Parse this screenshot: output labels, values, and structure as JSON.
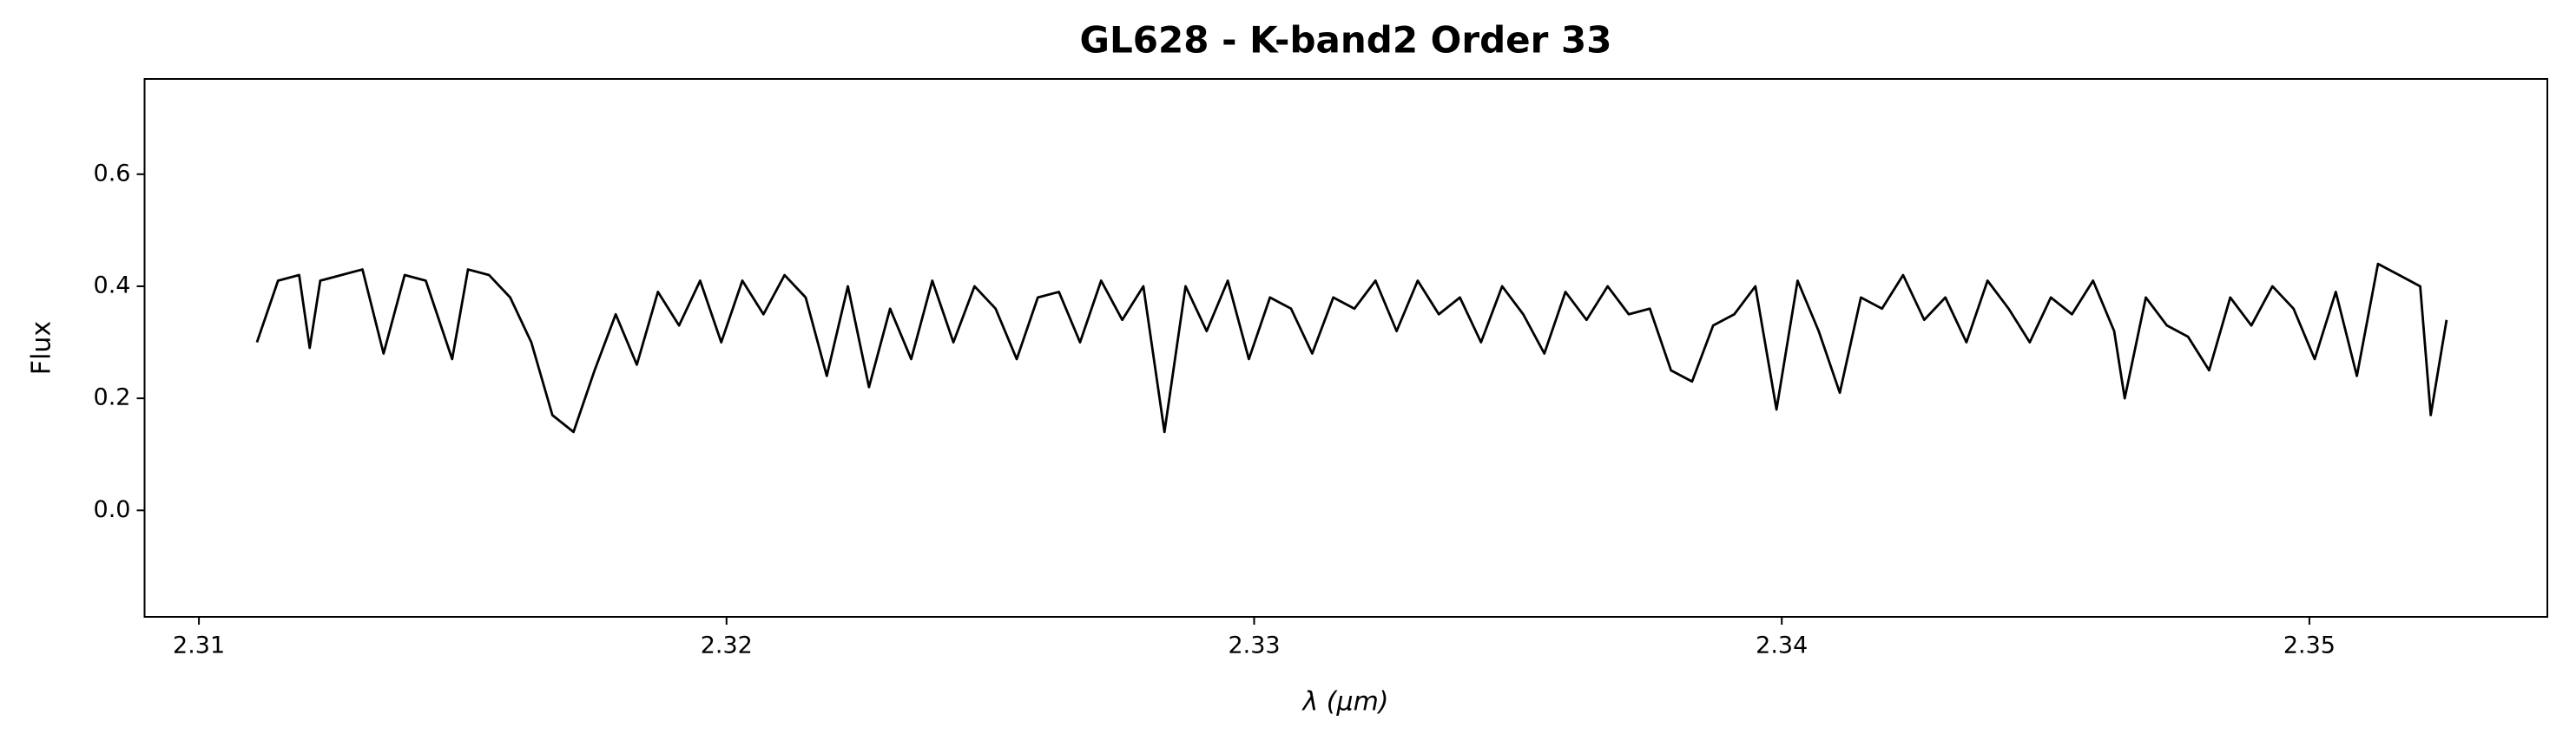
{
  "chart_data": {
    "type": "line",
    "title": "GL628 - K-band2 Order 33",
    "xlabel": "λ (μm)",
    "ylabel": "Flux",
    "color": "#000000",
    "grid": false,
    "xlim": [
      2.30897,
      2.35451
    ],
    "ylim": [
      -0.19,
      0.77
    ],
    "xticks": [
      2.31,
      2.32,
      2.33,
      2.34,
      2.35
    ],
    "yticks": [
      {
        "value": 0,
        "label": "0.0"
      },
      0.2,
      0.4,
      0.6
    ],
    "x": [
      2.3111,
      2.3115,
      2.3119,
      2.3121,
      2.3123,
      2.3127,
      2.3131,
      2.3135,
      2.3139,
      2.3143,
      2.3148,
      2.3151,
      2.3155,
      2.3159,
      2.3163,
      2.3167,
      2.3171,
      2.3175,
      2.3179,
      2.3183,
      2.3187,
      2.3191,
      2.3195,
      2.3199,
      2.3203,
      2.3207,
      2.3211,
      2.3215,
      2.3219,
      2.3223,
      2.3227,
      2.3231,
      2.3235,
      2.3239,
      2.3243,
      2.3247,
      2.3251,
      2.3255,
      2.3259,
      2.3263,
      2.3267,
      2.3271,
      2.3275,
      2.3279,
      2.3283,
      2.3287,
      2.3291,
      2.3295,
      2.3299,
      2.3303,
      2.3307,
      2.3311,
      2.3315,
      2.3319,
      2.3323,
      2.3327,
      2.3331,
      2.3335,
      2.3339,
      2.3343,
      2.3347,
      2.3351,
      2.3355,
      2.3359,
      2.3363,
      2.3367,
      2.3371,
      2.3375,
      2.3379,
      2.3383,
      2.3387,
      2.3391,
      2.3395,
      2.3399,
      2.3403,
      2.3407,
      2.3411,
      2.3415,
      2.3419,
      2.3423,
      2.3427,
      2.3431,
      2.3435,
      2.3439,
      2.3443,
      2.3447,
      2.3451,
      2.3455,
      2.3459,
      2.3463,
      2.3465,
      2.3469,
      2.3473,
      2.3477,
      2.3481,
      2.3485,
      2.3489,
      2.3493,
      2.3497,
      2.3501,
      2.3505,
      2.3509,
      2.3513,
      2.3517,
      2.3521,
      2.3523,
      2.3526
    ],
    "values": [
      0.3,
      0.41,
      0.42,
      0.29,
      0.41,
      0.42,
      0.43,
      0.28,
      0.42,
      0.41,
      0.27,
      0.43,
      0.42,
      0.38,
      0.3,
      0.17,
      0.14,
      0.25,
      0.35,
      0.26,
      0.39,
      0.33,
      0.41,
      0.3,
      0.41,
      0.35,
      0.42,
      0.38,
      0.24,
      0.4,
      0.22,
      0.36,
      0.27,
      0.41,
      0.3,
      0.4,
      0.36,
      0.27,
      0.38,
      0.39,
      0.3,
      0.41,
      0.34,
      0.4,
      0.14,
      0.4,
      0.32,
      0.41,
      0.27,
      0.38,
      0.36,
      0.28,
      0.38,
      0.36,
      0.41,
      0.32,
      0.41,
      0.35,
      0.38,
      0.3,
      0.4,
      0.35,
      0.28,
      0.39,
      0.34,
      0.4,
      0.35,
      0.36,
      0.25,
      0.23,
      0.33,
      0.35,
      0.4,
      0.18,
      0.41,
      0.32,
      0.21,
      0.38,
      0.36,
      0.42,
      0.34,
      0.38,
      0.3,
      0.41,
      0.36,
      0.3,
      0.38,
      0.35,
      0.41,
      0.32,
      0.2,
      0.38,
      0.33,
      0.31,
      0.25,
      0.38,
      0.33,
      0.4,
      0.36,
      0.27,
      0.39,
      0.24,
      0.44,
      0.42,
      0.4,
      0.17,
      0.34
    ]
  }
}
